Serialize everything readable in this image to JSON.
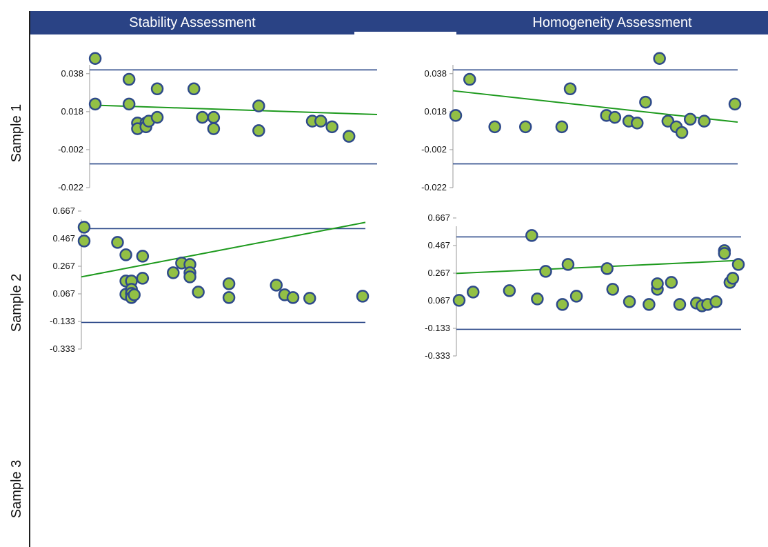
{
  "header": {
    "left": "Stability Assessment",
    "right": "Homogeneity Assessment"
  },
  "rows": [
    "Sample 1",
    "Sample 2",
    "Sample 3"
  ],
  "colors": {
    "header_bg": "#2a4385",
    "limit_line": "#2e4a8a",
    "trend_line": "#1e9a1e",
    "marker_fill": "#92c045",
    "marker_stroke": "#2e4a8a"
  },
  "chart_data": [
    {
      "id": "s1-stability",
      "type": "scatter",
      "ticks": [
        "0.038",
        "0.018",
        "-0.002",
        "-0.022"
      ],
      "ylim": [
        -0.022,
        0.047
      ],
      "limits": [
        0.04,
        -0.0095
      ],
      "trend": [
        [
          0,
          0.0215
        ],
        [
          1,
          0.0165
        ]
      ],
      "points": [
        [
          0.01,
          0.046
        ],
        [
          0.01,
          0.022
        ],
        [
          0.13,
          0.035
        ],
        [
          0.13,
          0.022
        ],
        [
          0.16,
          0.012
        ],
        [
          0.16,
          0.009
        ],
        [
          0.19,
          0.012
        ],
        [
          0.19,
          0.01
        ],
        [
          0.2,
          0.013
        ],
        [
          0.23,
          0.015
        ],
        [
          0.23,
          0.03
        ],
        [
          0.36,
          0.03
        ],
        [
          0.39,
          0.015
        ],
        [
          0.43,
          0.015
        ],
        [
          0.43,
          0.009
        ],
        [
          0.59,
          0.021
        ],
        [
          0.59,
          0.008
        ],
        [
          0.78,
          0.013
        ],
        [
          0.81,
          0.013
        ],
        [
          0.85,
          0.01
        ],
        [
          0.91,
          0.005
        ]
      ]
    },
    {
      "id": "s1-homogeneity",
      "type": "scatter",
      "ticks": [
        "0.038",
        "0.018",
        "-0.002",
        "-0.022"
      ],
      "ylim": [
        -0.022,
        0.047
      ],
      "limits": [
        0.04,
        -0.0095
      ],
      "trend": [
        [
          0,
          0.029
        ],
        [
          1,
          0.0125
        ]
      ],
      "points": [
        [
          0,
          0.016
        ],
        [
          0.05,
          0.035
        ],
        [
          0.14,
          0.01
        ],
        [
          0.25,
          0.01
        ],
        [
          0.38,
          0.01
        ],
        [
          0.41,
          0.03
        ],
        [
          0.54,
          0.016
        ],
        [
          0.57,
          0.015
        ],
        [
          0.62,
          0.013
        ],
        [
          0.65,
          0.012
        ],
        [
          0.68,
          0.023
        ],
        [
          0.73,
          0.046
        ],
        [
          0.76,
          0.013
        ],
        [
          0.79,
          0.01
        ],
        [
          0.81,
          0.007
        ],
        [
          0.84,
          0.014
        ],
        [
          0.89,
          0.013
        ],
        [
          1.0,
          0.022
        ]
      ]
    },
    {
      "id": "s2-stability",
      "type": "scatter",
      "ticks": [
        "0.667",
        "0.467",
        "0.267",
        "0.067",
        "-0.133",
        "-0.333"
      ],
      "ylim": [
        -0.333,
        0.667
      ],
      "limits": [
        0.54,
        -0.14
      ],
      "trend": [
        [
          0,
          0.19
        ],
        [
          1,
          0.585
        ]
      ],
      "points": [
        [
          0,
          0.55
        ],
        [
          0,
          0.45
        ],
        [
          0.12,
          0.44
        ],
        [
          0.15,
          0.35
        ],
        [
          0.15,
          0.16
        ],
        [
          0.15,
          0.064
        ],
        [
          0.17,
          0.16
        ],
        [
          0.17,
          0.1
        ],
        [
          0.17,
          0.07
        ],
        [
          0.17,
          0.04
        ],
        [
          0.18,
          0.06
        ],
        [
          0.21,
          0.34
        ],
        [
          0.21,
          0.18
        ],
        [
          0.32,
          0.22
        ],
        [
          0.35,
          0.29
        ],
        [
          0.38,
          0.28
        ],
        [
          0.38,
          0.22
        ],
        [
          0.38,
          0.19
        ],
        [
          0.41,
          0.08
        ],
        [
          0.52,
          0.14
        ],
        [
          0.52,
          0.04
        ],
        [
          0.69,
          0.13
        ],
        [
          0.72,
          0.06
        ],
        [
          0.75,
          0.04
        ],
        [
          0.81,
          0.035
        ],
        [
          1.0,
          0.05
        ]
      ]
    },
    {
      "id": "s2-homogeneity",
      "type": "scatter",
      "ticks": [
        "0.667",
        "0.467",
        "0.267",
        "0.067",
        "-0.133",
        "-0.333"
      ],
      "ylim": [
        -0.333,
        0.667
      ],
      "limits": [
        0.53,
        -0.14
      ],
      "trend": [
        [
          0,
          0.265
        ],
        [
          1,
          0.36
        ]
      ],
      "points": [
        [
          0,
          0.07
        ],
        [
          0.05,
          0.13
        ],
        [
          0.18,
          0.14
        ],
        [
          0.26,
          0.54
        ],
        [
          0.28,
          0.08
        ],
        [
          0.31,
          0.28
        ],
        [
          0.37,
          0.04
        ],
        [
          0.39,
          0.33
        ],
        [
          0.42,
          0.1
        ],
        [
          0.53,
          0.3
        ],
        [
          0.55,
          0.15
        ],
        [
          0.61,
          0.06
        ],
        [
          0.68,
          0.04
        ],
        [
          0.71,
          0.15
        ],
        [
          0.71,
          0.19
        ],
        [
          0.76,
          0.2
        ],
        [
          0.79,
          0.04
        ],
        [
          0.85,
          0.05
        ],
        [
          0.87,
          0.03
        ],
        [
          0.89,
          0.04
        ],
        [
          0.92,
          0.06
        ],
        [
          0.95,
          0.43
        ],
        [
          0.95,
          0.41
        ],
        [
          0.97,
          0.2
        ],
        [
          0.98,
          0.23
        ],
        [
          1.0,
          0.33
        ]
      ]
    }
  ]
}
